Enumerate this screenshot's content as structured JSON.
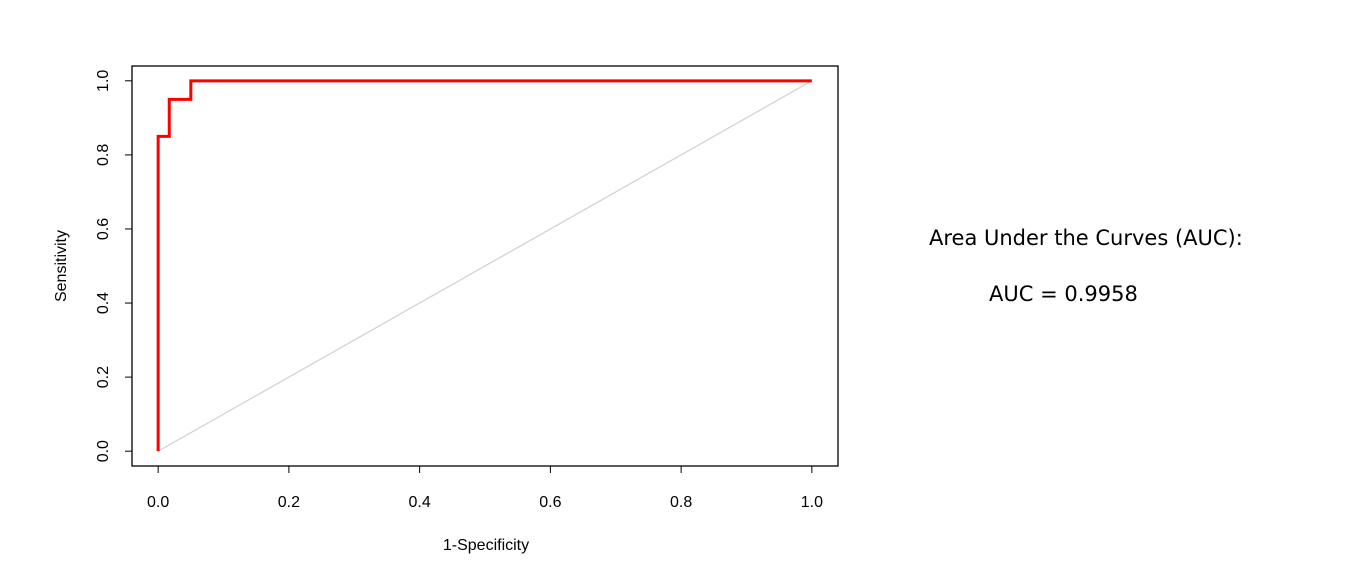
{
  "chart_data": {
    "type": "line",
    "xlabel": "1-Specificity",
    "ylabel": "Sensitivity",
    "xlim": [
      -0.04,
      1.04
    ],
    "ylim": [
      -0.04,
      1.04
    ],
    "xticks": [
      {
        "value": 0,
        "label": "0.0"
      },
      0.2,
      0.4,
      0.6,
      0.8,
      {
        "value": 1,
        "label": "1.0"
      }
    ],
    "yticks": [
      {
        "value": 0,
        "label": "0.0"
      },
      0.2,
      0.4,
      0.6,
      0.8,
      {
        "value": 1,
        "label": "1.0"
      }
    ],
    "series": [
      {
        "color": "#ff0000",
        "x": [
          0,
          0,
          0.017,
          0.017,
          0.05,
          0.05,
          1
        ],
        "values": [
          0,
          0.85,
          0.85,
          0.95,
          0.95,
          1,
          1
        ]
      },
      {
        "color": "#d3d3d3",
        "x": [
          0,
          1
        ],
        "values": [
          0,
          1
        ]
      }
    ],
    "annotations": [
      "Area Under the Curves (AUC):",
      "AUC = 0.9958"
    ]
  }
}
